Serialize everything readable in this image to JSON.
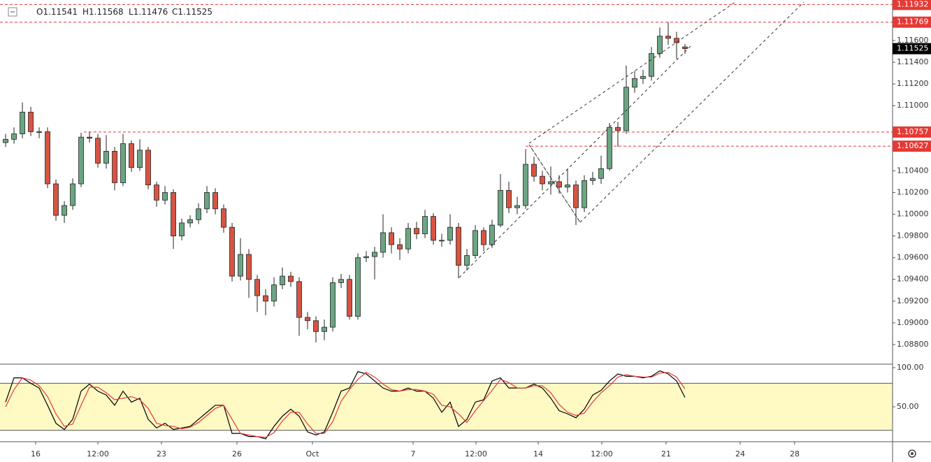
{
  "chart_data": [
    {
      "type": "candlestick",
      "header": [
        "O1.11541",
        "H1.11568",
        "L1.11476",
        "C1.11525"
      ],
      "up_color": "#6ba583",
      "down_color": "#d75442",
      "open": [
        1.1066,
        1.1069,
        1.1074,
        1.1094,
        1.1076,
        1.1076,
        1.1028,
        1.0999,
        1.1008,
        1.1028,
        1.1071,
        1.107,
        1.1047,
        1.1058,
        1.1029,
        1.1065,
        1.1043,
        1.1059,
        1.1027,
        1.1013,
        1.102,
        1.098,
        1.0992,
        1.0995,
        1.1005,
        1.102,
        1.1005,
        1.0988,
        1.0943,
        1.0963,
        1.094,
        1.0925,
        1.092,
        1.0935,
        1.0943,
        1.0938,
        1.0905,
        1.0902,
        1.0892,
        1.0896,
        1.0937,
        1.094,
        1.0906,
        1.096,
        1.0961,
        1.0965,
        1.0983,
        1.0972,
        1.0968,
        1.0987,
        1.0982,
        1.0998,
        1.0976,
        1.0976,
        1.0988,
        1.0953,
        1.0962,
        1.0985,
        1.0972,
        1.099,
        1.1022,
        1.1006,
        1.1008,
        1.1046,
        1.1035,
        1.1028,
        1.103,
        1.1025,
        1.1027,
        1.1006,
        1.1031,
        1.1033,
        1.1042,
        1.108,
        1.1077,
        1.1117,
        1.1125,
        1.1127,
        1.1148,
        1.1164,
        1.1162,
        1.11541
      ],
      "high": [
        1.1074,
        1.108,
        1.1103,
        1.1099,
        1.108,
        1.108,
        1.1032,
        1.1012,
        1.1033,
        1.1075,
        1.1076,
        1.1074,
        1.1073,
        1.1062,
        1.1074,
        1.1068,
        1.1069,
        1.1062,
        1.103,
        1.1026,
        1.1023,
        1.0996,
        1.0999,
        1.101,
        1.1026,
        1.1024,
        1.1009,
        1.0992,
        1.0978,
        1.0968,
        1.0944,
        1.0931,
        1.0942,
        1.0951,
        1.0947,
        1.0942,
        1.091,
        1.0906,
        1.0903,
        1.0942,
        1.0945,
        1.0944,
        1.0964,
        1.0966,
        1.097,
        1.1,
        1.0988,
        1.0978,
        1.0992,
        1.0993,
        1.1004,
        1.1001,
        1.0982,
        1.1,
        1.0992,
        1.0968,
        1.099,
        1.0988,
        1.0995,
        1.1037,
        1.103,
        1.1016,
        1.106,
        1.1053,
        1.104,
        1.1044,
        1.1036,
        1.1042,
        1.1031,
        1.1036,
        1.1039,
        1.1054,
        1.1084,
        1.1085,
        1.1137,
        1.1132,
        1.1133,
        1.1154,
        1.1172,
        1.11769,
        1.1168,
        1.11568
      ],
      "low": [
        1.1062,
        1.1065,
        1.107,
        1.1072,
        1.107,
        1.1024,
        1.0994,
        1.0992,
        1.1004,
        1.1025,
        1.1066,
        1.1043,
        1.1042,
        1.1022,
        1.1026,
        1.1039,
        1.104,
        1.1023,
        1.1007,
        1.1009,
        1.0968,
        1.0976,
        1.0988,
        1.0991,
        1.1001,
        1.1,
        1.0983,
        1.0938,
        1.0939,
        1.0923,
        1.091,
        1.0907,
        1.0915,
        1.0931,
        1.0933,
        1.0888,
        1.0894,
        1.0882,
        1.0884,
        1.0892,
        1.0932,
        1.0903,
        1.0903,
        1.0956,
        1.094,
        1.096,
        1.0964,
        1.0958,
        1.0964,
        1.0977,
        1.0978,
        1.0972,
        1.097,
        1.0972,
        1.0941,
        1.0948,
        1.0959,
        1.0966,
        1.0969,
        1.0988,
        1.1001,
        1.1,
        1.1005,
        1.103,
        1.1022,
        1.1018,
        1.1019,
        1.102,
        1.099,
        1.1002,
        1.1027,
        1.1028,
        1.104,
        1.1062,
        1.1074,
        1.1112,
        1.112,
        1.1123,
        1.1144,
        1.1156,
        1.1143,
        1.11476
      ],
      "close": [
        1.1069,
        1.1074,
        1.1094,
        1.1076,
        1.1076,
        1.1028,
        1.0999,
        1.1008,
        1.1028,
        1.1071,
        1.107,
        1.1047,
        1.1058,
        1.1029,
        1.1065,
        1.1043,
        1.1059,
        1.1027,
        1.1013,
        1.102,
        1.098,
        1.0992,
        1.0995,
        1.1005,
        1.102,
        1.1005,
        1.0988,
        1.0943,
        1.0963,
        1.094,
        1.0925,
        1.092,
        1.0935,
        1.0943,
        1.0938,
        1.0905,
        1.0902,
        1.0892,
        1.0896,
        1.0937,
        1.094,
        1.0906,
        1.096,
        1.0961,
        1.0965,
        1.0983,
        1.0972,
        1.0968,
        1.0987,
        1.0982,
        1.0998,
        1.0976,
        1.0976,
        1.0988,
        1.0953,
        1.0962,
        1.0985,
        1.0972,
        1.099,
        1.1022,
        1.1006,
        1.1008,
        1.1046,
        1.1035,
        1.1028,
        1.103,
        1.1025,
        1.1027,
        1.1006,
        1.1031,
        1.1033,
        1.1042,
        1.108,
        1.1077,
        1.1117,
        1.1125,
        1.1127,
        1.1148,
        1.1164,
        1.1162,
        1.1158,
        1.11525
      ],
      "xlim": [
        -0.67,
        105.75
      ],
      "xticks": [
        {
          "value": 3.58,
          "label": "16"
        },
        {
          "value": 11,
          "label": "12:00"
        },
        {
          "value": 18.58,
          "label": "23"
        },
        {
          "value": 27.58,
          "label": "26"
        },
        {
          "value": 36.58,
          "label": "Oct"
        },
        {
          "value": 48.58,
          "label": "7"
        },
        {
          "value": 56.08,
          "label": "12:00"
        },
        {
          "value": 63.5,
          "label": "14"
        },
        {
          "value": 71.08,
          "label": "12:00"
        },
        {
          "value": 78.75,
          "label": "21"
        },
        {
          "value": 87.58,
          "label": "24"
        },
        {
          "value": 94.08,
          "label": "28"
        }
      ],
      "ylim": [
        1.08626,
        1.11973
      ],
      "yticks": [
        {
          "value": 1.088,
          "label": "1.08800"
        },
        {
          "value": 1.09,
          "label": "1.09000"
        },
        {
          "value": 1.092,
          "label": "1.09200"
        },
        {
          "value": 1.094,
          "label": "1.09400"
        },
        {
          "value": 1.096,
          "label": "1.09600"
        },
        {
          "value": 1.098,
          "label": "1.09800"
        },
        {
          "value": 1.1,
          "label": "1.10000"
        },
        {
          "value": 1.102,
          "label": "1.10200"
        },
        {
          "value": 1.104,
          "label": "1.10400"
        },
        {
          "value": 1.11,
          "label": "1.11000"
        },
        {
          "value": 1.112,
          "label": "1.11200"
        },
        {
          "value": 1.114,
          "label": "1.11400"
        },
        {
          "value": 1.116,
          "label": "1.11600"
        }
      ],
      "levels": [
        {
          "value": 1.11932,
          "label": "1.11932",
          "color": "#e53935"
        },
        {
          "value": 1.11769,
          "label": "1.11769",
          "color": "#e53935"
        },
        {
          "value": 1.10757,
          "label": "1.10757",
          "color": "#e53935"
        },
        {
          "value": 1.10627,
          "label": "1.10627",
          "color": "#e53935"
        }
      ],
      "last_price": {
        "value": 1.11525,
        "label": "1.11525",
        "color": "#000000"
      }
    },
    {
      "type": "line",
      "series": [
        {
          "color": "#000000",
          "values": [
            56,
            87,
            87,
            80,
            74,
            52,
            29,
            21,
            34,
            70,
            79,
            70,
            65,
            52,
            70,
            56,
            61,
            34,
            23,
            29,
            21,
            23,
            25,
            34,
            43,
            52,
            52,
            16,
            16,
            12,
            12,
            9,
            25,
            38,
            47,
            38,
            18,
            14,
            18,
            43,
            70,
            74,
            95,
            92,
            83,
            74,
            70,
            70,
            74,
            70,
            70,
            61,
            43,
            56,
            25,
            34,
            56,
            59,
            83,
            87,
            74,
            74,
            74,
            79,
            74,
            61,
            45,
            41,
            36,
            47,
            65,
            71,
            83,
            92,
            89,
            89,
            87,
            89,
            96,
            92,
            83,
            62
          ]
        },
        {
          "color": "#e53935",
          "values": [
            50,
            72,
            87,
            84,
            77,
            63,
            41,
            25,
            28,
            52,
            75,
            75,
            68,
            59,
            61,
            63,
            59,
            48,
            29,
            26,
            25,
            22,
            24,
            30,
            39,
            48,
            52,
            34,
            16,
            14,
            12,
            11,
            17,
            32,
            43,
            43,
            28,
            16,
            16,
            31,
            57,
            72,
            85,
            94,
            88,
            79,
            72,
            70,
            72,
            72,
            70,
            66,
            52,
            50,
            41,
            30,
            45,
            58,
            71,
            85,
            81,
            74,
            74,
            77,
            77,
            68,
            53,
            43,
            39,
            42,
            56,
            68,
            77,
            88,
            91,
            89,
            88,
            88,
            93,
            94,
            88,
            73
          ]
        }
      ],
      "band": [
        20,
        80
      ],
      "band_color": "#fff9c4",
      "ylim": [
        5.4,
        103.6
      ],
      "yticks": [
        {
          "value": 100,
          "label": "100.00"
        },
        {
          "value": 50,
          "label": "50.00"
        }
      ]
    }
  ]
}
